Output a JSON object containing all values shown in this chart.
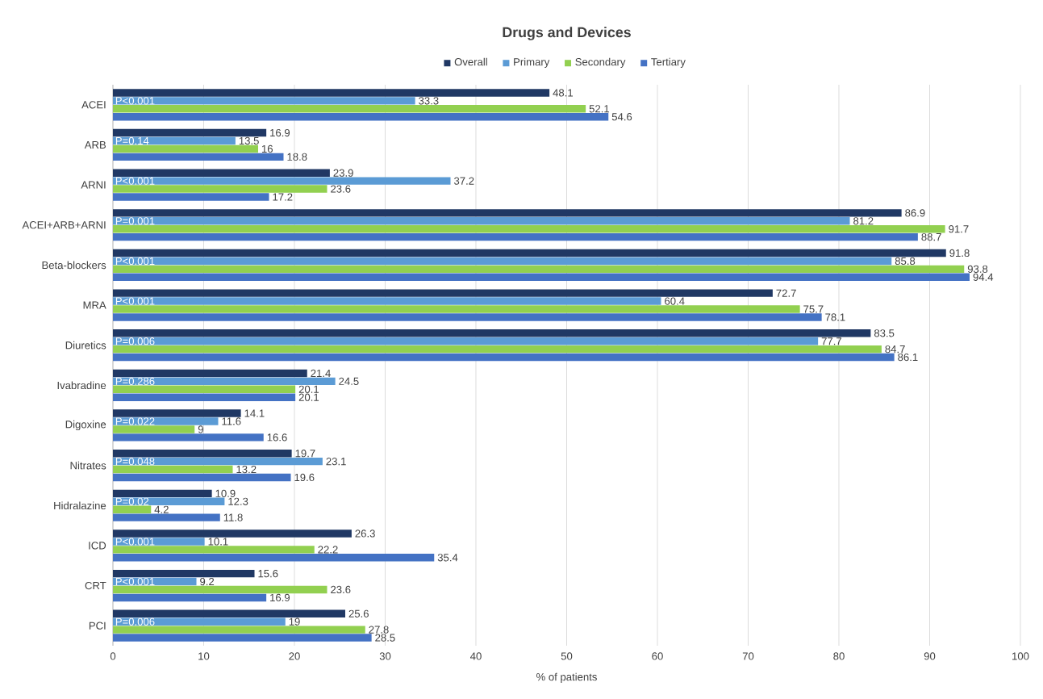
{
  "chart_data": {
    "type": "bar",
    "orientation": "horizontal",
    "title": "Drugs and Devices",
    "xlabel": "% of patients",
    "categories": [
      "ACEI",
      "ARB",
      "ARNI",
      "ACEI+ARB+ARNI",
      "Beta-blockers",
      "MRA",
      "Diuretics",
      "Ivabradine",
      "Digoxine",
      "Nitrates",
      "Hidralazine",
      "ICD",
      "CRT",
      "PCI"
    ],
    "series": [
      {
        "name": "Overall",
        "color": "#203864",
        "values": [
          48.1,
          16.9,
          23.9,
          86.9,
          91.8,
          72.7,
          83.5,
          21.4,
          14.1,
          19.7,
          10.9,
          26.3,
          15.6,
          25.6
        ]
      },
      {
        "name": "Primary",
        "color": "#5b9bd5",
        "values": [
          33.3,
          13.5,
          37.2,
          81.2,
          85.8,
          60.4,
          77.7,
          24.5,
          11.6,
          23.1,
          12.3,
          10.1,
          9.2,
          19
        ]
      },
      {
        "name": "Secondary",
        "color": "#92d050",
        "values": [
          52.1,
          16,
          23.6,
          91.7,
          93.8,
          75.7,
          84.7,
          20.1,
          9,
          13.2,
          4.2,
          22.2,
          23.6,
          27.8
        ]
      },
      {
        "name": "Tertiary",
        "color": "#4472c4",
        "values": [
          54.6,
          18.8,
          17.2,
          88.7,
          94.4,
          78.1,
          86.1,
          20.1,
          16.6,
          19.6,
          11.8,
          35.4,
          16.9,
          28.5
        ]
      }
    ],
    "annotations": [
      {
        "text": "P<0.001",
        "y": "ACEI"
      },
      {
        "text": "P=0.14",
        "y": "ARB"
      },
      {
        "text": "P<0.001",
        "y": "ARNI"
      },
      {
        "text": "P=0.001",
        "y": "ACEI+ARB+ARNI"
      },
      {
        "text": "P<0.001",
        "y": "Beta-blockers"
      },
      {
        "text": "P<0.001",
        "y": "MRA"
      },
      {
        "text": "P=0.006",
        "y": "Diuretics"
      },
      {
        "text": "P=0.286",
        "y": "Ivabradine"
      },
      {
        "text": "P=0.022",
        "y": "Digoxine"
      },
      {
        "text": "P=0.048",
        "y": "Nitrates"
      },
      {
        "text": "P=0.02",
        "y": "Hidralazine"
      },
      {
        "text": "P<0.001",
        "y": "ICD"
      },
      {
        "text": "P<0.001",
        "y": "CRT"
      },
      {
        "text": "P=0.006",
        "y": "PCI"
      }
    ],
    "xlim": [
      0,
      100
    ],
    "xticks": [
      0,
      10,
      20,
      30,
      40,
      50,
      60,
      70,
      80,
      90,
      100
    ],
    "data_labels": true,
    "grid": "x",
    "legend": "top"
  }
}
